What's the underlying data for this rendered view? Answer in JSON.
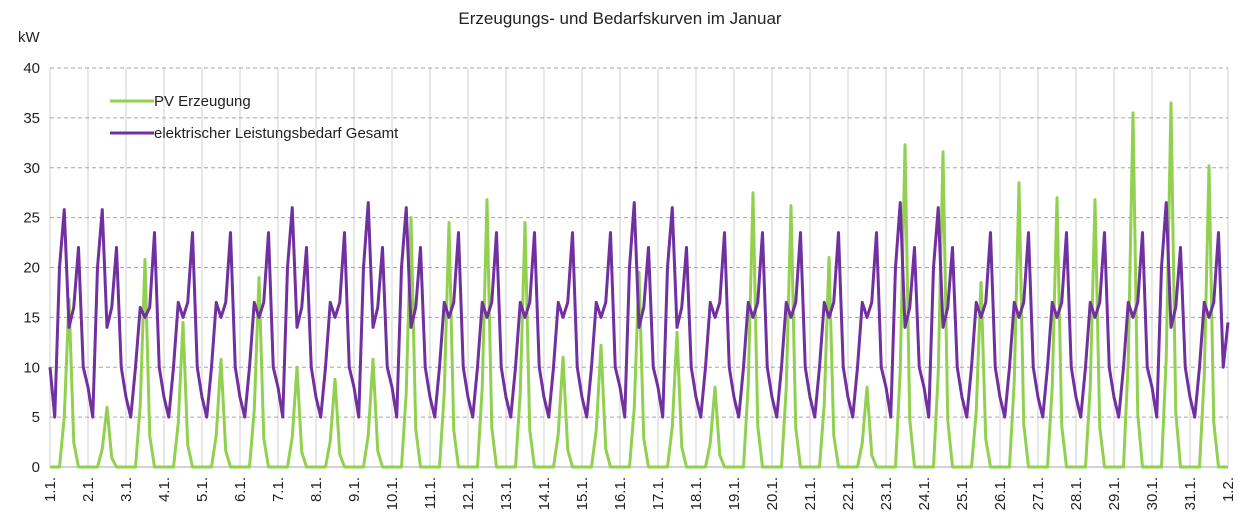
{
  "chart_data": {
    "type": "line",
    "title": "Erzeugungs- und Bedarfskurven im Januar",
    "y_label": "kW",
    "grid": true,
    "legend": "upper left",
    "xlim": [
      0,
      744
    ],
    "xticks": [
      {
        "value": 0,
        "label": "1.1."
      },
      {
        "value": 24,
        "label": "2.1."
      },
      {
        "value": 48,
        "label": "3.1."
      },
      {
        "value": 72,
        "label": "4.1."
      },
      {
        "value": 96,
        "label": "5.1."
      },
      {
        "value": 120,
        "label": "6.1."
      },
      {
        "value": 144,
        "label": "7.1."
      },
      {
        "value": 168,
        "label": "8.1."
      },
      {
        "value": 192,
        "label": "9.1."
      },
      {
        "value": 216,
        "label": "10.1."
      },
      {
        "value": 240,
        "label": "11.1."
      },
      {
        "value": 264,
        "label": "12.1."
      },
      {
        "value": 288,
        "label": "13.1."
      },
      {
        "value": 312,
        "label": "14.1."
      },
      {
        "value": 336,
        "label": "15.1."
      },
      {
        "value": 360,
        "label": "16.1."
      },
      {
        "value": 384,
        "label": "17.1."
      },
      {
        "value": 408,
        "label": "18.1."
      },
      {
        "value": 432,
        "label": "19.1."
      },
      {
        "value": 456,
        "label": "20.1."
      },
      {
        "value": 480,
        "label": "21.1."
      },
      {
        "value": 504,
        "label": "22.1."
      },
      {
        "value": 528,
        "label": "23.1."
      },
      {
        "value": 552,
        "label": "24.1."
      },
      {
        "value": 576,
        "label": "25.1."
      },
      {
        "value": 600,
        "label": "26.1."
      },
      {
        "value": 624,
        "label": "27.1."
      },
      {
        "value": 648,
        "label": "28.1."
      },
      {
        "value": 672,
        "label": "29.1."
      },
      {
        "value": 696,
        "label": "30.1."
      },
      {
        "value": 720,
        "label": "31.1."
      },
      {
        "value": 744,
        "label": "1.2."
      }
    ],
    "ylim": [
      0,
      40
    ],
    "yticks": [
      0,
      5,
      10,
      15,
      20,
      25,
      30,
      35,
      40
    ],
    "x": [
      0,
      3,
      6,
      9,
      12,
      15,
      18,
      21,
      24,
      27,
      30,
      33,
      36,
      39,
      42,
      45,
      48,
      51,
      54,
      57,
      60,
      63,
      66,
      69,
      72,
      75,
      78,
      81,
      84,
      87,
      90,
      93,
      96,
      99,
      102,
      105,
      108,
      111,
      114,
      117,
      120,
      123,
      126,
      129,
      132,
      135,
      138,
      141,
      144,
      147,
      150,
      153,
      156,
      159,
      162,
      165,
      168,
      171,
      174,
      177,
      180,
      183,
      186,
      189,
      192,
      195,
      198,
      201,
      204,
      207,
      210,
      213,
      216,
      219,
      222,
      225,
      228,
      231,
      234,
      237,
      240,
      243,
      246,
      249,
      252,
      255,
      258,
      261,
      264,
      267,
      270,
      273,
      276,
      279,
      282,
      285,
      288,
      291,
      294,
      297,
      300,
      303,
      306,
      309,
      312,
      315,
      318,
      321,
      324,
      327,
      330,
      333,
      336,
      339,
      342,
      345,
      348,
      351,
      354,
      357,
      360,
      363,
      366,
      369,
      372,
      375,
      378,
      381,
      384,
      387,
      390,
      393,
      396,
      399,
      402,
      405,
      408,
      411,
      414,
      417,
      420,
      423,
      426,
      429,
      432,
      435,
      438,
      441,
      444,
      447,
      450,
      453,
      456,
      459,
      462,
      465,
      468,
      471,
      474,
      477,
      480,
      483,
      486,
      489,
      492,
      495,
      498,
      501,
      504,
      507,
      510,
      513,
      516,
      519,
      522,
      525,
      528,
      531,
      534,
      537,
      540,
      543,
      546,
      549,
      552,
      555,
      558,
      561,
      564,
      567,
      570,
      573,
      576,
      579,
      582,
      585,
      588,
      591,
      594,
      597,
      600,
      603,
      606,
      609,
      612,
      615,
      618,
      621,
      624,
      627,
      630,
      633,
      636,
      639,
      642,
      645,
      648,
      651,
      654,
      657,
      660,
      663,
      666,
      669,
      672,
      675,
      678,
      681,
      684,
      687,
      690,
      693,
      696,
      699,
      702,
      705,
      708,
      711,
      714,
      717,
      720,
      723,
      726,
      729,
      732,
      735,
      738,
      741,
      744
    ],
    "series": [
      {
        "name": "PV Erzeugung",
        "color": "#92d050",
        "values": [
          0,
          0,
          0,
          5,
          16.8,
          2.5,
          0,
          0,
          0,
          0,
          0,
          1.8,
          6,
          0.9,
          0,
          0,
          0,
          0,
          0,
          6.2,
          20.8,
          3.1,
          0,
          0,
          0,
          0,
          0,
          4.4,
          14.5,
          2.2,
          0,
          0,
          0,
          0,
          0,
          3.2,
          10.8,
          1.6,
          0,
          0,
          0,
          0,
          0,
          5.7,
          19,
          2.9,
          0,
          0,
          0,
          0,
          0,
          3,
          10,
          1.5,
          0,
          0,
          0,
          0,
          0,
          2.6,
          8.8,
          1.3,
          0,
          0,
          0,
          0,
          0,
          3.2,
          10.8,
          1.6,
          0,
          0,
          0,
          0,
          0,
          7.5,
          25,
          3.8,
          0,
          0,
          0,
          0,
          0,
          7.4,
          24.5,
          3.7,
          0,
          0,
          0,
          0,
          0,
          8,
          26.8,
          4,
          0,
          0,
          0,
          0,
          0,
          7.4,
          24.5,
          3.7,
          0,
          0,
          0,
          0,
          0,
          3.3,
          11,
          1.7,
          0,
          0,
          0,
          0,
          0,
          3.7,
          12.2,
          1.8,
          0,
          0,
          0,
          0,
          0,
          5.9,
          19.5,
          2.9,
          0,
          0,
          0,
          0,
          0,
          4,
          13.5,
          2,
          0,
          0,
          0,
          0,
          0,
          2.4,
          8,
          1.2,
          0,
          0,
          0,
          0,
          0,
          8.3,
          27.5,
          4.1,
          0,
          0,
          0,
          0,
          0,
          7.9,
          26.2,
          3.9,
          0,
          0,
          0,
          0,
          0,
          6.3,
          21,
          3.2,
          0,
          0,
          0,
          0,
          0,
          2.4,
          8,
          1.2,
          0,
          0,
          0,
          0,
          0,
          9.7,
          32.3,
          4.8,
          0,
          0,
          0,
          0,
          0,
          9.5,
          31.6,
          4.7,
          0,
          0,
          0,
          0,
          0,
          5.6,
          18.5,
          2.8,
          0,
          0,
          0,
          0,
          0,
          8.6,
          28.5,
          4.3,
          0,
          0,
          0,
          0,
          0,
          8.1,
          27,
          4.1,
          0,
          0,
          0,
          0,
          0,
          8,
          26.8,
          4,
          0,
          0,
          0,
          0,
          0,
          10.7,
          35.5,
          5.3,
          0,
          0,
          0,
          0,
          0,
          11,
          36.5,
          5.5,
          0,
          0,
          0,
          0,
          0,
          9.1,
          30.2,
          4.5,
          0,
          0,
          0
        ]
      },
      {
        "name": "elektrischer Leistungsbedarf Gesamt",
        "color": "#7030a0",
        "values": [
          10,
          5,
          20,
          25.8,
          14,
          16,
          22,
          10,
          8,
          5,
          20,
          25.8,
          14,
          16,
          22,
          10,
          7,
          5,
          10,
          16,
          15,
          16,
          23.5,
          10,
          7,
          5,
          10,
          16.5,
          15,
          16.5,
          23.5,
          10,
          7,
          5,
          10,
          16.5,
          15,
          16.5,
          23.5,
          10,
          7,
          5,
          10,
          16.5,
          15,
          16.5,
          23.5,
          10,
          8,
          5,
          20,
          26,
          14,
          16,
          22,
          10,
          7,
          5,
          10,
          16.5,
          15,
          16.5,
          23.5,
          10,
          8,
          5,
          20,
          26.5,
          14,
          16,
          22,
          10,
          8,
          5,
          20,
          26,
          14,
          16,
          22,
          10,
          7,
          5,
          10,
          16.5,
          15,
          16.5,
          23.5,
          10,
          7,
          5,
          10,
          16.5,
          15,
          16.5,
          23.5,
          10,
          7,
          5,
          10,
          16.5,
          15,
          16.5,
          23.5,
          10,
          7,
          5,
          10,
          16.5,
          15,
          16.5,
          23.5,
          10,
          7,
          5,
          10,
          16.5,
          15,
          16.5,
          23.5,
          10,
          8,
          5,
          20,
          26.5,
          14,
          16,
          22,
          10,
          8,
          5,
          20,
          26,
          14,
          16,
          22,
          10,
          7,
          5,
          10,
          16.5,
          15,
          16.5,
          23.5,
          10,
          7,
          5,
          10,
          16.5,
          15,
          16.5,
          23.5,
          10,
          7,
          5,
          10,
          16.5,
          15,
          16.5,
          23.5,
          10,
          7,
          5,
          10,
          16.5,
          15,
          16.5,
          23.5,
          10,
          7,
          5,
          10,
          16.5,
          15,
          16.5,
          23.5,
          10,
          8,
          5,
          20,
          26.5,
          14,
          16,
          22,
          10,
          8,
          5,
          20,
          26,
          14,
          16,
          22,
          10,
          7,
          5,
          10,
          16.5,
          15,
          16.5,
          23.5,
          10,
          7,
          5,
          10,
          16.5,
          15,
          16.5,
          23.5,
          10,
          7,
          5,
          10,
          16.5,
          15,
          16.5,
          23.5,
          10,
          7,
          5,
          10,
          16.5,
          15,
          16.5,
          23.5,
          10,
          7,
          5,
          10,
          16.5,
          15,
          16.5,
          23.5,
          10,
          8,
          5,
          20,
          26.5,
          14,
          16,
          22,
          10,
          7,
          5,
          10,
          16.5,
          15,
          16.5,
          23.5,
          10,
          14.5
        ]
      }
    ]
  }
}
